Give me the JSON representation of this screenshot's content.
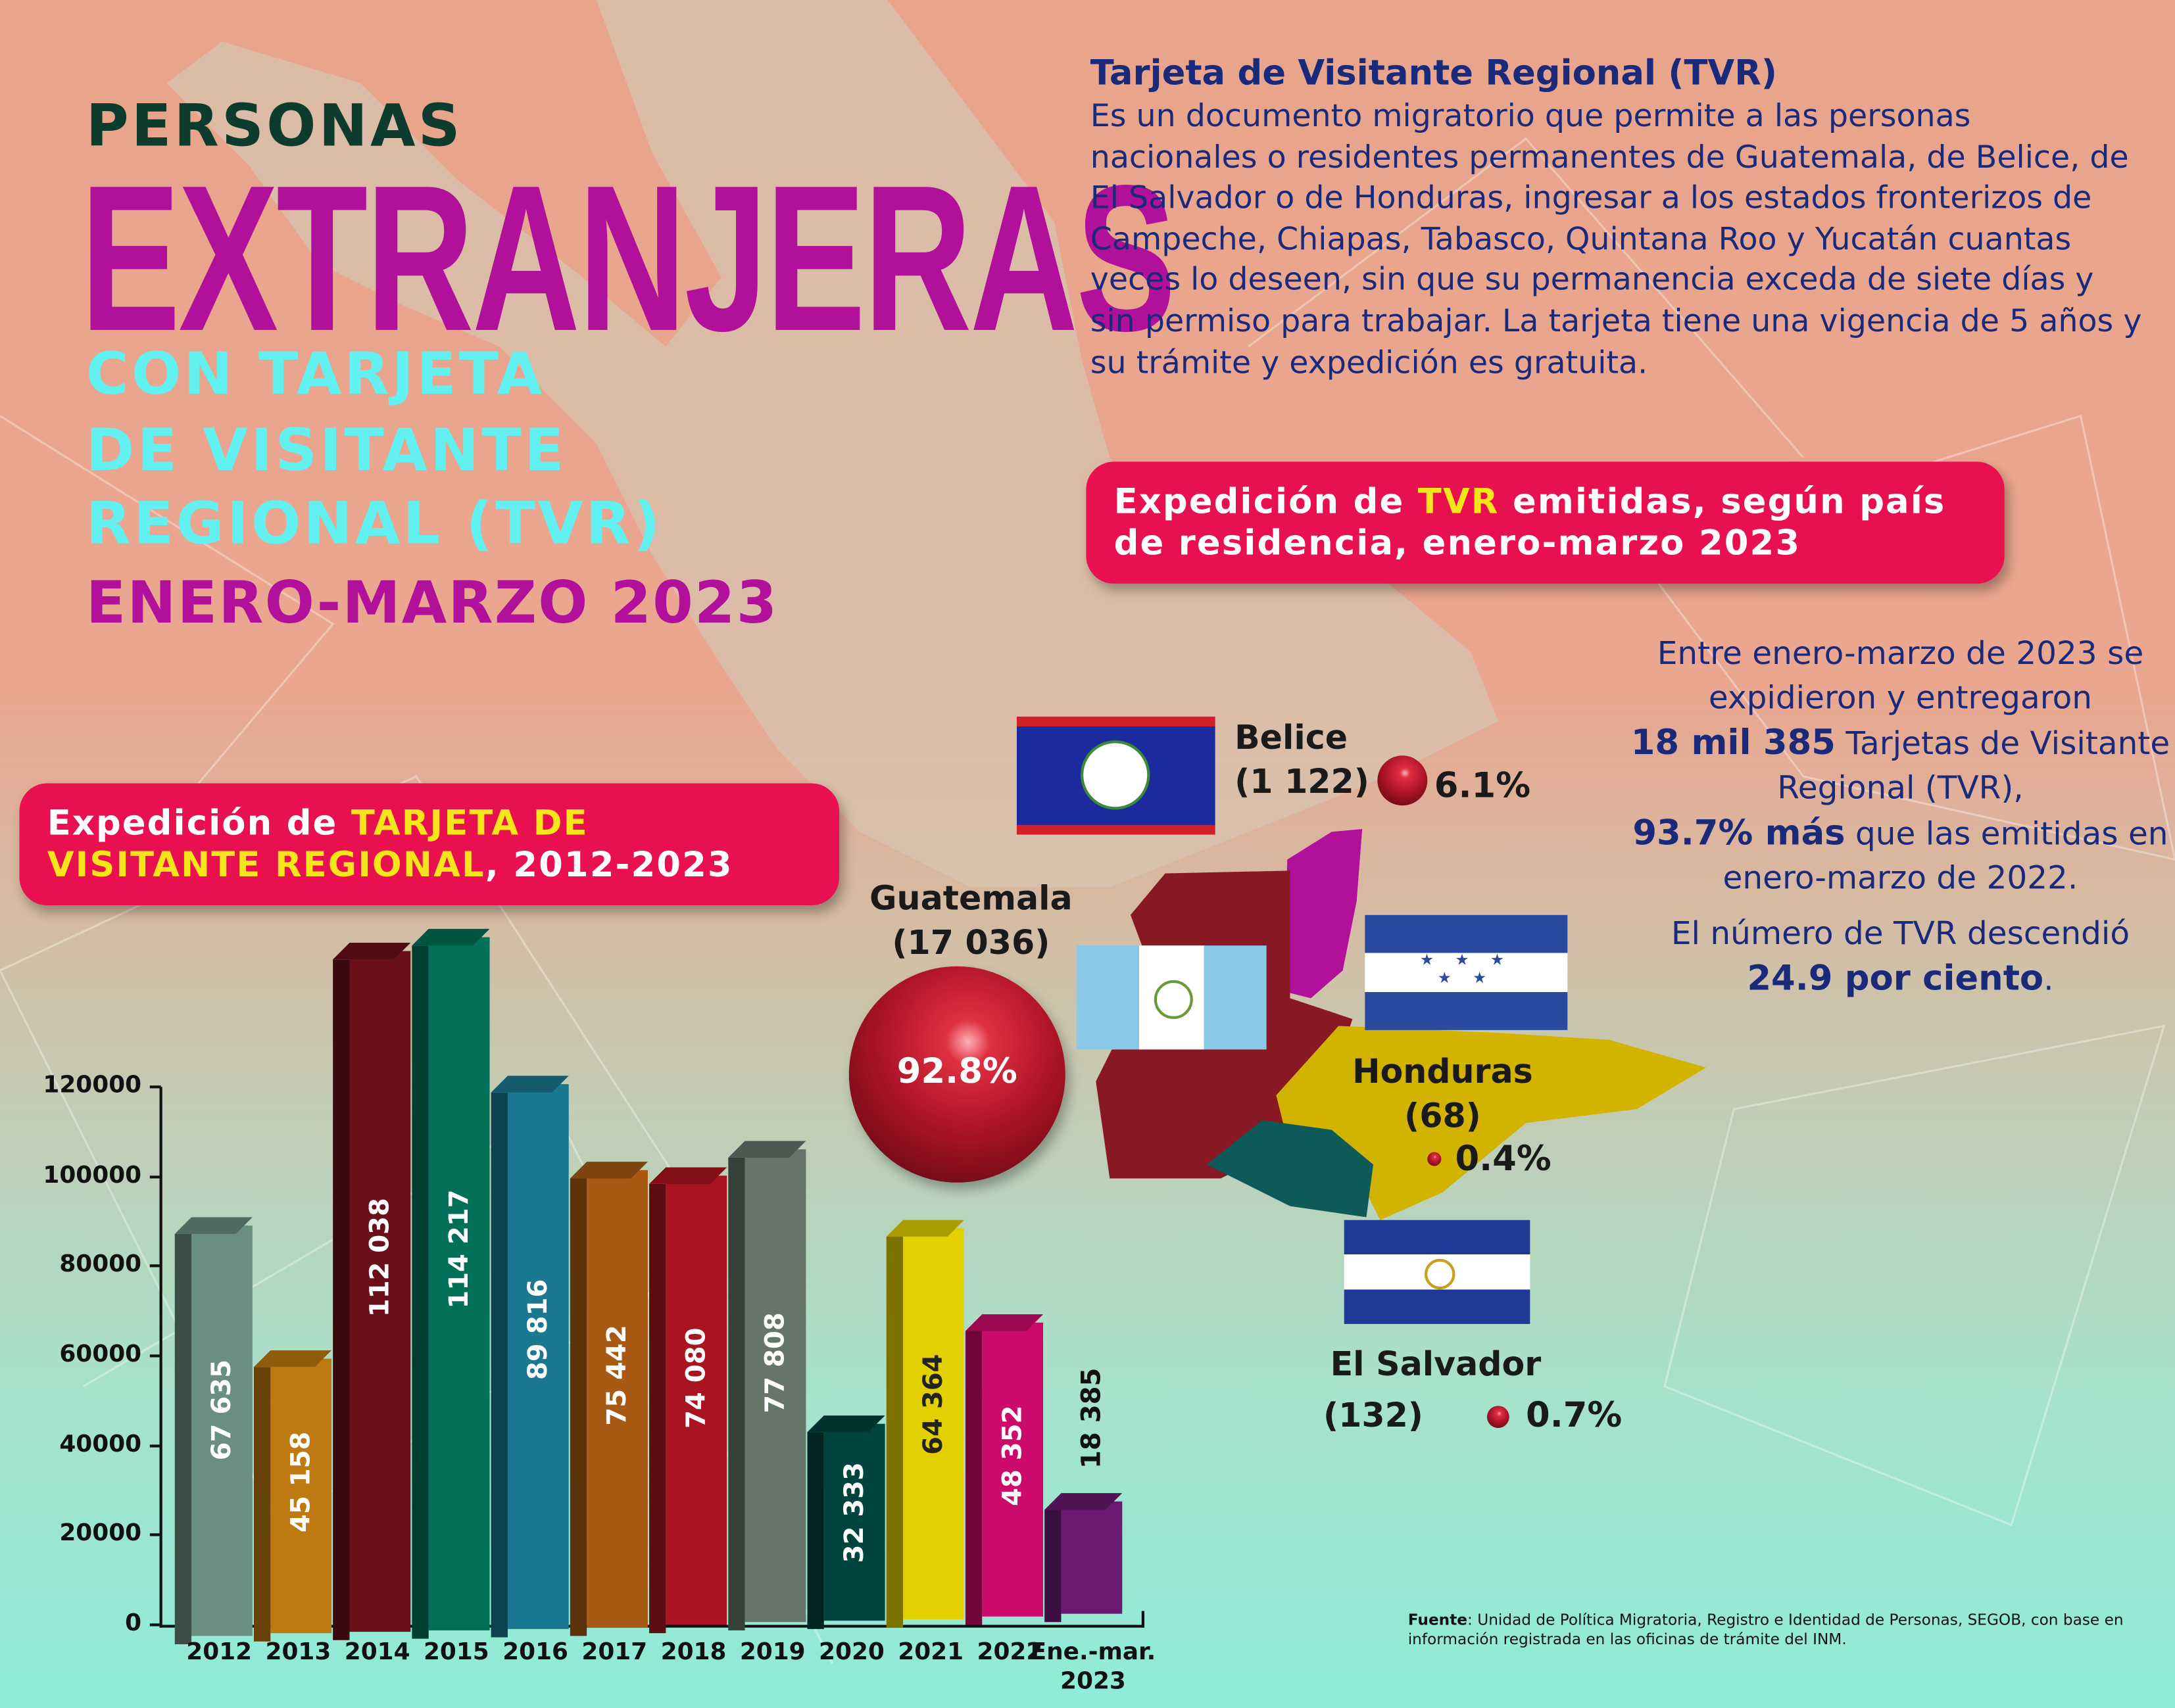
{
  "title": {
    "line1": "PERSONAS",
    "line2": "EXTRANJERAS",
    "line3": "CON TARJETA",
    "line4": "DE VISITANTE",
    "line5": "REGIONAL (TVR)",
    "line6": "ENERO-MARZO 2023"
  },
  "description": {
    "heading": "Tarjeta de Visitante Regional (TVR)",
    "body": "Es un documento migratorio que permite a las personas nacionales o residentes permanentes de Guatemala, de Belice, de El Salvador o de Honduras, ingresar a los estados fronterizos de Campeche, Chiapas, Tabasco, Quintana Roo y Yucatán cuantas veces lo deseen, sin que su permanencia exceda de siete días y sin permiso para trabajar. La tarjeta tiene una vigencia de 5 años y su trámite y expedición es gratuita."
  },
  "country_box": {
    "pre": "Expedición de ",
    "highlight": "TVR",
    "post": " emitidas, según país de residencia, enero-marzo 2023"
  },
  "stats": {
    "l1": "Entre enero-marzo de 2023 se expidieron y entregaron",
    "bold1": "18 mil 385",
    "l2": " Tarjetas de Visitante Regional (TVR),",
    "bold2": "93.7% más",
    "l3": " que las emitidas en enero-marzo de 2022.",
    "l4": "El número de TVR descendió",
    "bold3": "24.9 por ciento",
    "l5": "."
  },
  "countries": {
    "belice": {
      "name": "Belice",
      "count": "(1 122)",
      "pct": "6.1%"
    },
    "guatemala": {
      "name": "Guatemala",
      "count": "(17 036)",
      "pct": "92.8%"
    },
    "honduras": {
      "name": "Honduras",
      "count": "(68)",
      "pct": "0.4%"
    },
    "salvador": {
      "name": "El Salvador",
      "count": "(132)",
      "pct": "0.7%"
    }
  },
  "chart_box": {
    "pre": "Expedición de ",
    "highlight": "TARJETA DE VISITANTE REGIONAL",
    "post": ", 2012-2023"
  },
  "chart_data": {
    "type": "bar",
    "title": "Expedición de TARJETA DE VISITANTE REGIONAL, 2012-2023",
    "xlabel": "",
    "ylabel": "",
    "categories": [
      "2012",
      "2013",
      "2014",
      "2015",
      "2016",
      "2017",
      "2018",
      "2019",
      "2020",
      "2021",
      "2022",
      "Ene.-mar. 2023"
    ],
    "values": [
      67635,
      45158,
      112038,
      114217,
      89816,
      75442,
      74080,
      77808,
      32333,
      64364,
      48352,
      18385
    ],
    "value_labels": [
      "67 635",
      "45 158",
      "112 038",
      "114 217",
      "89 816",
      "75 442",
      "74 080",
      "77 808",
      "32 333",
      "64 364",
      "48 352",
      "18 385"
    ],
    "colors": [
      "#6a8e80",
      "#be7a10",
      "#6a1018",
      "#007058",
      "#1a7890",
      "#a85a14",
      "#aa1420",
      "#66756a",
      "#004440",
      "#e2d000",
      "#cc0a6a",
      "#6a1a70"
    ],
    "yticks": [
      "0",
      "20000",
      "40000",
      "60000",
      "80000",
      "100000",
      "120000"
    ],
    "ylim": [
      0,
      120000
    ],
    "grid": false
  },
  "source": {
    "label": "Fuente",
    "text": ": Unidad de Política Migratoria, Registro e Identidad de Personas, SEGOB, con base en información registrada en las oficinas de trámite del INM."
  }
}
